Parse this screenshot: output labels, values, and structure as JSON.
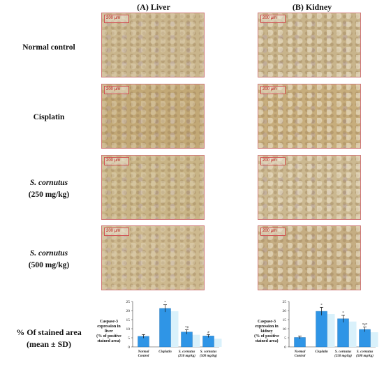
{
  "columns": {
    "liver": "(A) Liver",
    "kidney": "(B) Kidney"
  },
  "rows": {
    "normal": "Normal control",
    "cisplatin": "Cisplatin",
    "s250_name": "S. cornutus",
    "s250_dose": "(250 mg/kg)",
    "s500_name": "S. cornutus",
    "s500_dose": "(500 mg/kg)",
    "stained_line1": "% Of stained area",
    "stained_line2": "(mean ± SD)"
  },
  "scale_bar": "200 µm",
  "chart_data": [
    {
      "type": "bar",
      "ylabel": "Caspase-3 expression in liver (% of positive stained area)",
      "ylim": [
        0,
        25
      ],
      "yticks": [
        0,
        5,
        10,
        15,
        20,
        25
      ],
      "categories": [
        "Normal Control",
        "Cisplatin",
        "S. cornutus (250 mg/kg)",
        "S. cornutus (500 mg/kg)"
      ],
      "values": [
        5.8,
        21.2,
        8.2,
        6.0
      ],
      "errors": [
        1.0,
        2.0,
        1.2,
        0.8
      ],
      "annotations": [
        "",
        "*",
        "*#",
        "#"
      ]
    },
    {
      "type": "bar",
      "ylabel": "Caspase-3 expression in kidney (% of positive stained area)",
      "ylim": [
        0,
        25
      ],
      "yticks": [
        0,
        5,
        10,
        15,
        20,
        25
      ],
      "categories": [
        "Normal Control",
        "Cisplatin",
        "S. cornutus (250 mg/kg)",
        "S. cornutus (500 mg/kg)"
      ],
      "values": [
        5.2,
        19.6,
        15.5,
        9.6
      ],
      "errors": [
        0.8,
        2.2,
        2.0,
        1.3
      ],
      "annotations": [
        "",
        "*",
        "*",
        "*#*"
      ]
    }
  ],
  "chart_labels": {
    "liver_y": [
      "Caspase-3",
      "expression in",
      "liver",
      "(% of positive",
      "stained area)"
    ],
    "kidney_y": [
      "Caspase-3",
      "expression in",
      "kidney",
      "(% of positive",
      "stained area)"
    ]
  }
}
